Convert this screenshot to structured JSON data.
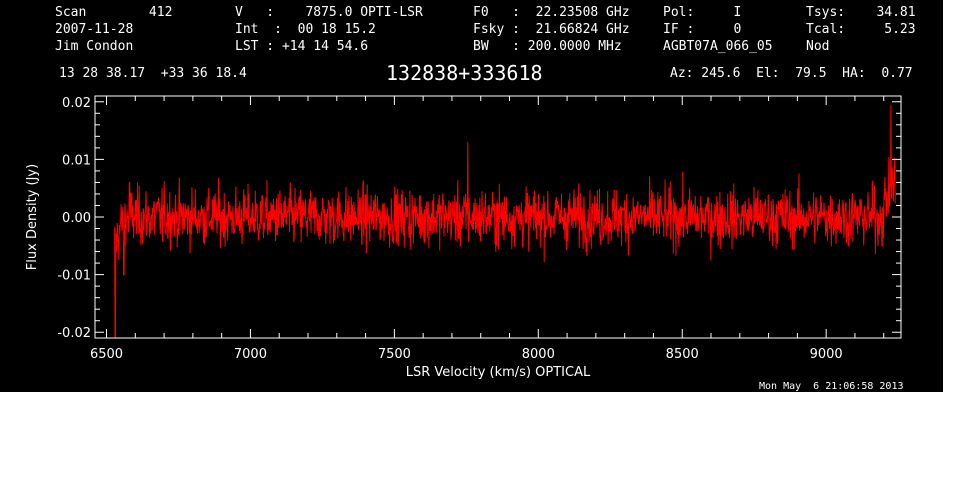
{
  "header": {
    "col1": [
      "Scan        412",
      "2007-11-28",
      "Jim Condon"
    ],
    "col2": [
      "V   :    7875.0 OPTI-LSR",
      "Int  :  00 18 15.2",
      "LST : +14 14 54.6"
    ],
    "col3": [
      "F0   :  22.23508 GHz",
      "Fsky :  21.66824 GHz",
      "BW   : 200.0000 MHz"
    ],
    "col4": [
      "Pol:     I",
      "IF :     0",
      "AGBT07A_066_05"
    ],
    "col5": [
      "Tsys:    34.81",
      "Tcal:     5.23",
      "Nod"
    ],
    "coords": "13 28 38.17  +33 36 18.4",
    "source": "132838+333618",
    "azel": "Az: 245.6  El:  79.5  HA:  0.77"
  },
  "timestamp": "Mon May  6 21:06:58 2013",
  "colors": {
    "background": "#000000",
    "trace": "#ff0000",
    "axes": "#ffffff"
  },
  "chart_data": {
    "type": "line",
    "title": "",
    "xlabel": "LSR Velocity (km/s) OPTICAL",
    "ylabel": "Flux Density (Jy)",
    "xlim": [
      6460,
      9260
    ],
    "ylim": [
      -0.021,
      0.021
    ],
    "xticks": [
      6500,
      7000,
      7500,
      8000,
      8500,
      9000
    ],
    "xtick_labels": [
      "6500",
      "7000",
      "7500",
      "8000",
      "8500",
      "9000"
    ],
    "yticks": [
      -0.02,
      -0.01,
      0.0,
      0.01,
      0.02
    ],
    "ytick_labels": [
      "-0.02",
      "-0.01",
      "0.00",
      "0.01",
      "0.02"
    ],
    "series": [
      {
        "x_start": 6528,
        "x_end": 9240,
        "baseline": 0.0,
        "noise_rms": 0.0035,
        "features": [
          {
            "x": 6530,
            "y": -0.019
          },
          {
            "x": 6560,
            "y": -0.01
          },
          {
            "x": 6580,
            "y": 0.006
          },
          {
            "x": 7755,
            "y": 0.013
          },
          {
            "x": 9225,
            "y": 0.015
          }
        ]
      }
    ],
    "grid": false
  }
}
